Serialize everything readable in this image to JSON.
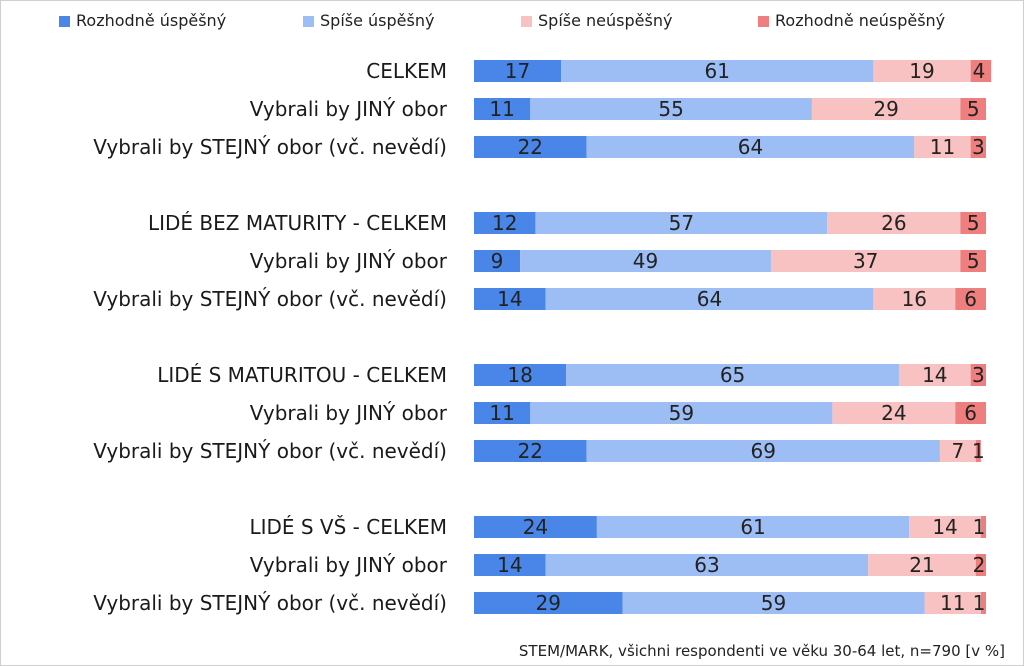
{
  "chart_data": {
    "type": "bar",
    "orientation": "horizontal",
    "stacked": true,
    "legend_position": "top",
    "grid": false,
    "xlim": [
      0,
      100
    ],
    "series": [
      {
        "name": "Rozhodně úspěšný",
        "color": "#4a86e8"
      },
      {
        "name": "Spíše úspěšný",
        "color": "#9dbdf5"
      },
      {
        "name": "Spíše neúspěšný",
        "color": "#f8c2c2"
      },
      {
        "name": "Rozhodně neúspěšný",
        "color": "#ef7f7f"
      }
    ],
    "rows": [
      {
        "label": "CELKEM",
        "values": [
          17,
          61,
          19,
          4
        ]
      },
      {
        "label": "Vybrali by JINÝ obor",
        "values": [
          11,
          55,
          29,
          5
        ]
      },
      {
        "label": "Vybrali by STEJNÝ obor (vč. nevědí)",
        "values": [
          22,
          64,
          11,
          3
        ]
      },
      {
        "label": "LIDÉ BEZ MATURITY - CELKEM",
        "values": [
          12,
          57,
          26,
          5
        ]
      },
      {
        "label": "Vybrali by JINÝ obor",
        "values": [
          9,
          49,
          37,
          5
        ]
      },
      {
        "label": "Vybrali by STEJNÝ obor (vč. nevědí)",
        "values": [
          14,
          64,
          16,
          6
        ]
      },
      {
        "label": "LIDÉ S MATURITOU - CELKEM",
        "values": [
          18,
          65,
          14,
          3
        ]
      },
      {
        "label": "Vybrali by JINÝ obor",
        "values": [
          11,
          59,
          24,
          6
        ]
      },
      {
        "label": "Vybrali by STEJNÝ obor (vč. nevědí)",
        "values": [
          22,
          69,
          7,
          1
        ]
      },
      {
        "label": "LIDÉ S VŠ - CELKEM",
        "values": [
          24,
          61,
          14,
          1
        ]
      },
      {
        "label": "Vybrali by JINÝ obor",
        "values": [
          14,
          63,
          21,
          2
        ]
      },
      {
        "label": "Vybrali by STEJNÝ obor (vč. nevědí)",
        "values": [
          29,
          59,
          11,
          1
        ]
      }
    ],
    "source_note": "STEM/MARK, všichni respondenti ve věku 30-64 let, n=790 [v %]"
  }
}
